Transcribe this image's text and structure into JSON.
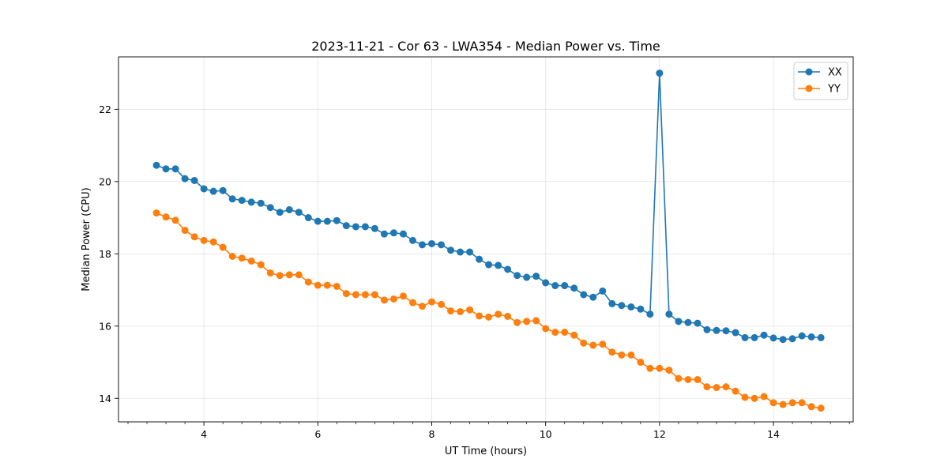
{
  "chart_data": {
    "type": "line",
    "title": "2023-11-21 - Cor 63 - LWA354 - Median Power vs. Time",
    "xlabel": "UT Time (hours)",
    "ylabel": "Median Power (CPU)",
    "xlim": [
      2.5,
      15.4
    ],
    "ylim": [
      13.35,
      23.45
    ],
    "xticks": [
      4,
      6,
      8,
      10,
      12,
      14
    ],
    "xtick_labels": [
      "4",
      "6",
      "8",
      "10",
      "12",
      "14"
    ],
    "yticks": [
      14,
      16,
      18,
      20,
      22
    ],
    "ytick_labels": [
      "14",
      "16",
      "18",
      "20",
      "22"
    ],
    "x_minor_step": 0.333333,
    "grid": true,
    "legend_position": "top-right",
    "x": [
      3.1667,
      3.3333,
      3.5,
      3.6667,
      3.8333,
      4.0,
      4.1667,
      4.3333,
      4.5,
      4.6667,
      4.8333,
      5.0,
      5.1667,
      5.3333,
      5.5,
      5.6667,
      5.8333,
      6.0,
      6.1667,
      6.3333,
      6.5,
      6.6667,
      6.8333,
      7.0,
      7.1667,
      7.3333,
      7.5,
      7.6667,
      7.8333,
      8.0,
      8.1667,
      8.3333,
      8.5,
      8.6667,
      8.8333,
      9.0,
      9.1667,
      9.3333,
      9.5,
      9.6667,
      9.8333,
      10.0,
      10.1667,
      10.3333,
      10.5,
      10.6667,
      10.8333,
      11.0,
      11.1667,
      11.3333,
      11.5,
      11.6667,
      11.8333,
      12.0,
      12.1667,
      12.3333,
      12.5,
      12.6667,
      12.8333,
      13.0,
      13.1667,
      13.3333,
      13.5,
      13.6667,
      13.8333,
      14.0,
      14.1667,
      14.3333,
      14.5,
      14.6667,
      14.8333
    ],
    "series": [
      {
        "name": "XX",
        "color": "#1f77b4",
        "values": [
          20.45,
          20.35,
          20.35,
          20.08,
          20.03,
          19.8,
          19.73,
          19.75,
          19.52,
          19.48,
          19.43,
          19.4,
          19.28,
          19.15,
          19.22,
          19.15,
          19.0,
          18.9,
          18.9,
          18.92,
          18.78,
          18.75,
          18.75,
          18.7,
          18.55,
          18.58,
          18.55,
          18.37,
          18.25,
          18.28,
          18.25,
          18.1,
          18.05,
          18.05,
          17.85,
          17.7,
          17.68,
          17.57,
          17.4,
          17.35,
          17.38,
          17.2,
          17.12,
          17.12,
          17.05,
          16.87,
          16.8,
          16.97,
          16.62,
          16.57,
          16.53,
          16.47,
          16.33,
          23.0,
          16.33,
          16.13,
          16.1,
          16.08,
          15.9,
          15.88,
          15.87,
          15.82,
          15.68,
          15.68,
          15.75,
          15.67,
          15.63,
          15.65,
          15.73,
          15.7,
          15.68
        ]
      },
      {
        "name": "YY",
        "color": "#ff7f0e",
        "values": [
          19.13,
          19.02,
          18.93,
          18.65,
          18.47,
          18.37,
          18.33,
          18.18,
          17.93,
          17.88,
          17.8,
          17.7,
          17.47,
          17.4,
          17.42,
          17.42,
          17.22,
          17.13,
          17.13,
          17.1,
          16.9,
          16.87,
          16.87,
          16.87,
          16.72,
          16.75,
          16.83,
          16.65,
          16.55,
          16.67,
          16.6,
          16.42,
          16.4,
          16.45,
          16.28,
          16.25,
          16.33,
          16.27,
          16.1,
          16.13,
          16.15,
          15.93,
          15.83,
          15.83,
          15.75,
          15.53,
          15.47,
          15.5,
          15.28,
          15.2,
          15.2,
          15.0,
          14.83,
          14.83,
          14.78,
          14.55,
          14.52,
          14.52,
          14.32,
          14.3,
          14.32,
          14.2,
          14.03,
          14.0,
          14.05,
          13.88,
          13.83,
          13.88,
          13.88,
          13.77,
          13.73
        ]
      }
    ]
  }
}
